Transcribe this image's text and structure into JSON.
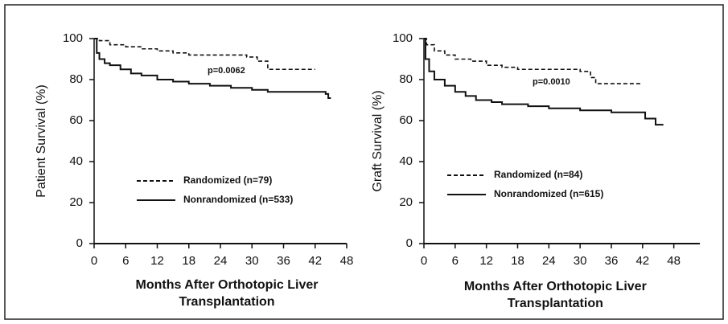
{
  "chart_data": [
    {
      "type": "line",
      "step": true,
      "ylabel": "Patient Survival (%)",
      "xlabel": [
        "Months After Orthotopic Liver",
        "Transplantation"
      ],
      "annotation": "p=0.0062",
      "xlim": [
        0,
        48
      ],
      "xticks": [
        0,
        6,
        12,
        18,
        24,
        30,
        36,
        42,
        48
      ],
      "ylim": [
        0,
        100
      ],
      "yticks": [
        0,
        20,
        40,
        60,
        80,
        100
      ],
      "series": [
        {
          "name": "Randomized (n=79)",
          "color": "#111111",
          "dash": "dashed",
          "x": [
            0,
            1,
            3,
            6,
            9,
            12,
            15,
            18,
            24,
            29,
            31,
            33,
            42
          ],
          "values": [
            100,
            99,
            97,
            96,
            95,
            94,
            93,
            92,
            92,
            91,
            89,
            85,
            85
          ]
        },
        {
          "name": "Nonrandomized (n=533)",
          "color": "#111111",
          "dash": "solid",
          "x": [
            0,
            0.5,
            1,
            2,
            3,
            5,
            7,
            9,
            12,
            15,
            18,
            22,
            26,
            30,
            33,
            36,
            44,
            44.5,
            45
          ],
          "values": [
            100,
            93,
            90,
            88,
            87,
            85,
            83,
            82,
            80,
            79,
            78,
            77,
            76,
            75,
            74,
            74,
            73,
            71,
            71
          ]
        }
      ]
    },
    {
      "type": "line",
      "step": true,
      "ylabel": "Graft Survival (%)",
      "xlabel": [
        "Months After Orthotopic Liver",
        "Transplantation"
      ],
      "annotation": "p=0.0010",
      "xlim": [
        0,
        53
      ],
      "xticks": [
        0,
        6,
        12,
        18,
        24,
        30,
        36,
        42,
        48
      ],
      "ylim": [
        0,
        100
      ],
      "yticks": [
        0,
        20,
        40,
        60,
        80,
        100
      ],
      "series": [
        {
          "name": "Randomized (n=84)",
          "color": "#111111",
          "dash": "dashed",
          "x": [
            0,
            0.5,
            2,
            4,
            6,
            9,
            12,
            15,
            18,
            28,
            30,
            32,
            33,
            42
          ],
          "values": [
            100,
            97,
            94,
            92,
            90,
            89,
            87,
            86,
            85,
            85,
            84,
            81,
            78,
            78
          ]
        },
        {
          "name": "Nonrandomized (n=615)",
          "color": "#111111",
          "dash": "solid",
          "x": [
            0,
            0.3,
            1,
            2,
            4,
            6,
            8,
            10,
            13,
            15,
            20,
            24,
            30,
            36,
            42,
            42.5,
            44,
            44.5,
            46
          ],
          "values": [
            100,
            90,
            84,
            80,
            77,
            74,
            72,
            70,
            69,
            68,
            67,
            66,
            65,
            64,
            64,
            61,
            61,
            58,
            58
          ]
        }
      ]
    }
  ]
}
